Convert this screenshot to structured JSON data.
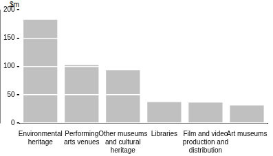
{
  "chart_data": {
    "type": "bar",
    "ylabel": "$m",
    "categories": [
      "Environmental heritage",
      "Performing arts venues",
      "Other museums and cultural heritage",
      "Libraries",
      "Film and video production and distribution",
      "Art museums"
    ],
    "values": [
      182,
      102,
      93,
      37,
      36,
      31
    ],
    "color": "#c0c0c0",
    "ylim": [
      0,
      200
    ],
    "yticks": [
      0,
      50,
      100,
      150,
      200
    ],
    "grid": true
  }
}
